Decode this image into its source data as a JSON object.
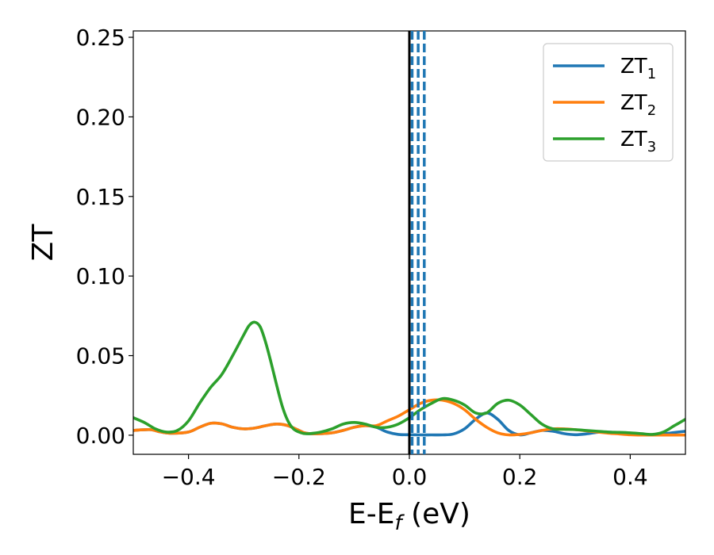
{
  "chart_data": {
    "type": "line",
    "xlabel": "E-E",
    "xlabel_sub": "f",
    "xlabel_unit": " (eV)",
    "ylabel": "ZT",
    "xlim": [
      -0.5,
      0.5
    ],
    "ylim": [
      -0.012,
      0.254
    ],
    "xticks": [
      -0.4,
      -0.2,
      0.0,
      0.2,
      0.4
    ],
    "xtick_labels": [
      "−0.4",
      "−0.2",
      "0.0",
      "0.2",
      "0.4"
    ],
    "yticks": [
      0.0,
      0.05,
      0.1,
      0.15,
      0.2,
      0.25
    ],
    "ytick_labels": [
      "0.00",
      "0.05",
      "0.10",
      "0.15",
      "0.20",
      "0.25"
    ],
    "grid": false,
    "legend_position": "top-right",
    "vlines": [
      {
        "x": 0.0,
        "color": "#000000",
        "style": "solid"
      },
      {
        "x": 0.005,
        "color": "#1f77b4",
        "style": "dashed"
      },
      {
        "x": 0.016,
        "color": "#1f77b4",
        "style": "dashed"
      },
      {
        "x": 0.027,
        "color": "#1f77b4",
        "style": "dashed"
      }
    ],
    "series": [
      {
        "name": "ZT",
        "name_sub": "1",
        "color": "#1f77b4",
        "x": [
          -0.5,
          -0.47,
          -0.45,
          -0.43,
          -0.4,
          -0.38,
          -0.36,
          -0.34,
          -0.32,
          -0.3,
          -0.28,
          -0.26,
          -0.24,
          -0.22,
          -0.2,
          -0.19,
          -0.18,
          -0.16,
          -0.14,
          -0.12,
          -0.1,
          -0.08,
          -0.06,
          -0.04,
          -0.02,
          0.0,
          0.02,
          0.04,
          0.06,
          0.08,
          0.1,
          0.12,
          0.14,
          0.16,
          0.18,
          0.2,
          0.22,
          0.24,
          0.26,
          0.28,
          0.3,
          0.32,
          0.34,
          0.36,
          0.38,
          0.4,
          0.42,
          0.44,
          0.46,
          0.48,
          0.5
        ],
        "y": [
          0.003,
          0.0035,
          0.002,
          0.0012,
          0.002,
          0.005,
          0.0075,
          0.0072,
          0.005,
          0.004,
          0.0045,
          0.006,
          0.007,
          0.006,
          0.003,
          0.0015,
          0.001,
          0.001,
          0.0015,
          0.003,
          0.005,
          0.006,
          0.005,
          0.002,
          0.0005,
          0.0003,
          0.0002,
          0.0002,
          0.0002,
          0.0008,
          0.004,
          0.01,
          0.014,
          0.01,
          0.003,
          0.0002,
          0.0015,
          0.003,
          0.0025,
          0.001,
          0.0003,
          0.0008,
          0.0018,
          0.002,
          0.0014,
          0.0007,
          0.0003,
          0.0002,
          0.0008,
          0.0017,
          0.0025
        ]
      },
      {
        "name": "ZT",
        "name_sub": "2",
        "color": "#ff7f0e",
        "x": [
          -0.5,
          -0.47,
          -0.45,
          -0.43,
          -0.4,
          -0.38,
          -0.36,
          -0.34,
          -0.32,
          -0.3,
          -0.28,
          -0.26,
          -0.24,
          -0.22,
          -0.2,
          -0.19,
          -0.18,
          -0.16,
          -0.14,
          -0.12,
          -0.1,
          -0.08,
          -0.06,
          -0.04,
          -0.02,
          0.0,
          0.02,
          0.04,
          0.06,
          0.08,
          0.1,
          0.12,
          0.14,
          0.16,
          0.18,
          0.2,
          0.22,
          0.24,
          0.26,
          0.28,
          0.3,
          0.32,
          0.34,
          0.36,
          0.38,
          0.4,
          0.42,
          0.44,
          0.46,
          0.48,
          0.5
        ],
        "y": [
          0.003,
          0.0035,
          0.002,
          0.0012,
          0.002,
          0.005,
          0.0075,
          0.0072,
          0.005,
          0.004,
          0.0045,
          0.006,
          0.007,
          0.006,
          0.003,
          0.0015,
          0.001,
          0.001,
          0.0015,
          0.003,
          0.005,
          0.006,
          0.006,
          0.009,
          0.012,
          0.016,
          0.02,
          0.022,
          0.022,
          0.02,
          0.016,
          0.01,
          0.005,
          0.0015,
          0.0002,
          0.0005,
          0.0015,
          0.003,
          0.004,
          0.004,
          0.0035,
          0.0028,
          0.002,
          0.0013,
          0.0008,
          0.0003,
          0.0001,
          0.0001,
          0.0001,
          0.0001,
          0.0001
        ]
      },
      {
        "name": "ZT",
        "name_sub": "3",
        "color": "#2ca02c",
        "x": [
          -0.5,
          -0.48,
          -0.46,
          -0.44,
          -0.42,
          -0.4,
          -0.38,
          -0.36,
          -0.34,
          -0.32,
          -0.3,
          -0.29,
          -0.28,
          -0.27,
          -0.26,
          -0.25,
          -0.24,
          -0.23,
          -0.22,
          -0.21,
          -0.2,
          -0.19,
          -0.18,
          -0.16,
          -0.14,
          -0.12,
          -0.1,
          -0.08,
          -0.06,
          -0.04,
          -0.02,
          0.0,
          0.02,
          0.04,
          0.06,
          0.08,
          0.1,
          0.12,
          0.14,
          0.16,
          0.18,
          0.2,
          0.22,
          0.24,
          0.26,
          0.28,
          0.3,
          0.32,
          0.34,
          0.36,
          0.38,
          0.4,
          0.42,
          0.44,
          0.46,
          0.48,
          0.5
        ],
        "y": [
          0.011,
          0.008,
          0.004,
          0.002,
          0.003,
          0.009,
          0.02,
          0.03,
          0.038,
          0.05,
          0.063,
          0.069,
          0.071,
          0.068,
          0.058,
          0.045,
          0.031,
          0.018,
          0.009,
          0.004,
          0.002,
          0.001,
          0.001,
          0.002,
          0.004,
          0.007,
          0.008,
          0.007,
          0.005,
          0.005,
          0.007,
          0.011,
          0.016,
          0.02,
          0.023,
          0.022,
          0.019,
          0.014,
          0.014,
          0.02,
          0.022,
          0.019,
          0.013,
          0.007,
          0.004,
          0.0037,
          0.0035,
          0.003,
          0.0025,
          0.002,
          0.0018,
          0.0015,
          0.001,
          0.0005,
          0.002,
          0.006,
          0.01
        ]
      }
    ]
  }
}
